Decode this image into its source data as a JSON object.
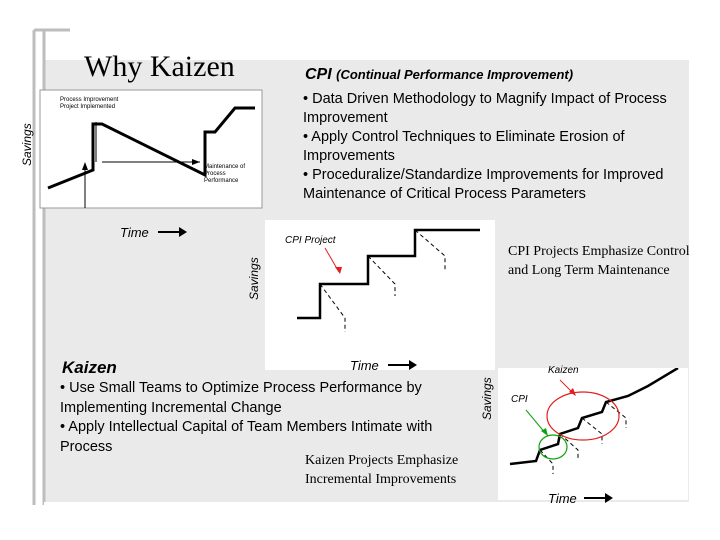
{
  "title": "Why Kaizen",
  "cpi": {
    "heading": "CPI",
    "heading_sub": "(Continual Performance Improvement)",
    "bullets": [
      "• Data Driven Methodology to Magnify Impact of Process Improvement",
      "• Apply Control Techniques to Eliminate Erosion of Improvements",
      "• Proceduralize/Standardize Improvements for Improved Maintenance of Critical Process Parameters"
    ],
    "note": "CPI Projects Emphasize Control and Long Term Maintenance"
  },
  "diagram1": {
    "label_project": "Process Improvement Project Implemented",
    "label_maintenance": "Maintenance of Process Performance",
    "axis_y": "Savings",
    "axis_x": "Time"
  },
  "diagram2": {
    "label": "CPI Project",
    "axis_y": "Savings",
    "axis_x": "Time"
  },
  "kaizen": {
    "heading": "Kaizen",
    "bullets": [
      "• Use Small Teams to Optimize Process Performance by Implementing Incremental Change",
      "• Apply Intellectual Capital of Team Members Intimate with Process"
    ],
    "note": "Kaizen Projects Emphasize Incremental Improvements"
  },
  "diagram3": {
    "label_kaizen": "Kaizen",
    "label_cpi": "CPI",
    "axis_y": "Savings",
    "axis_x": "Time"
  },
  "colors": {
    "panel": "#eaeaea",
    "frame": "#bdbdbd",
    "red": "#e02020",
    "green": "#10a010"
  }
}
